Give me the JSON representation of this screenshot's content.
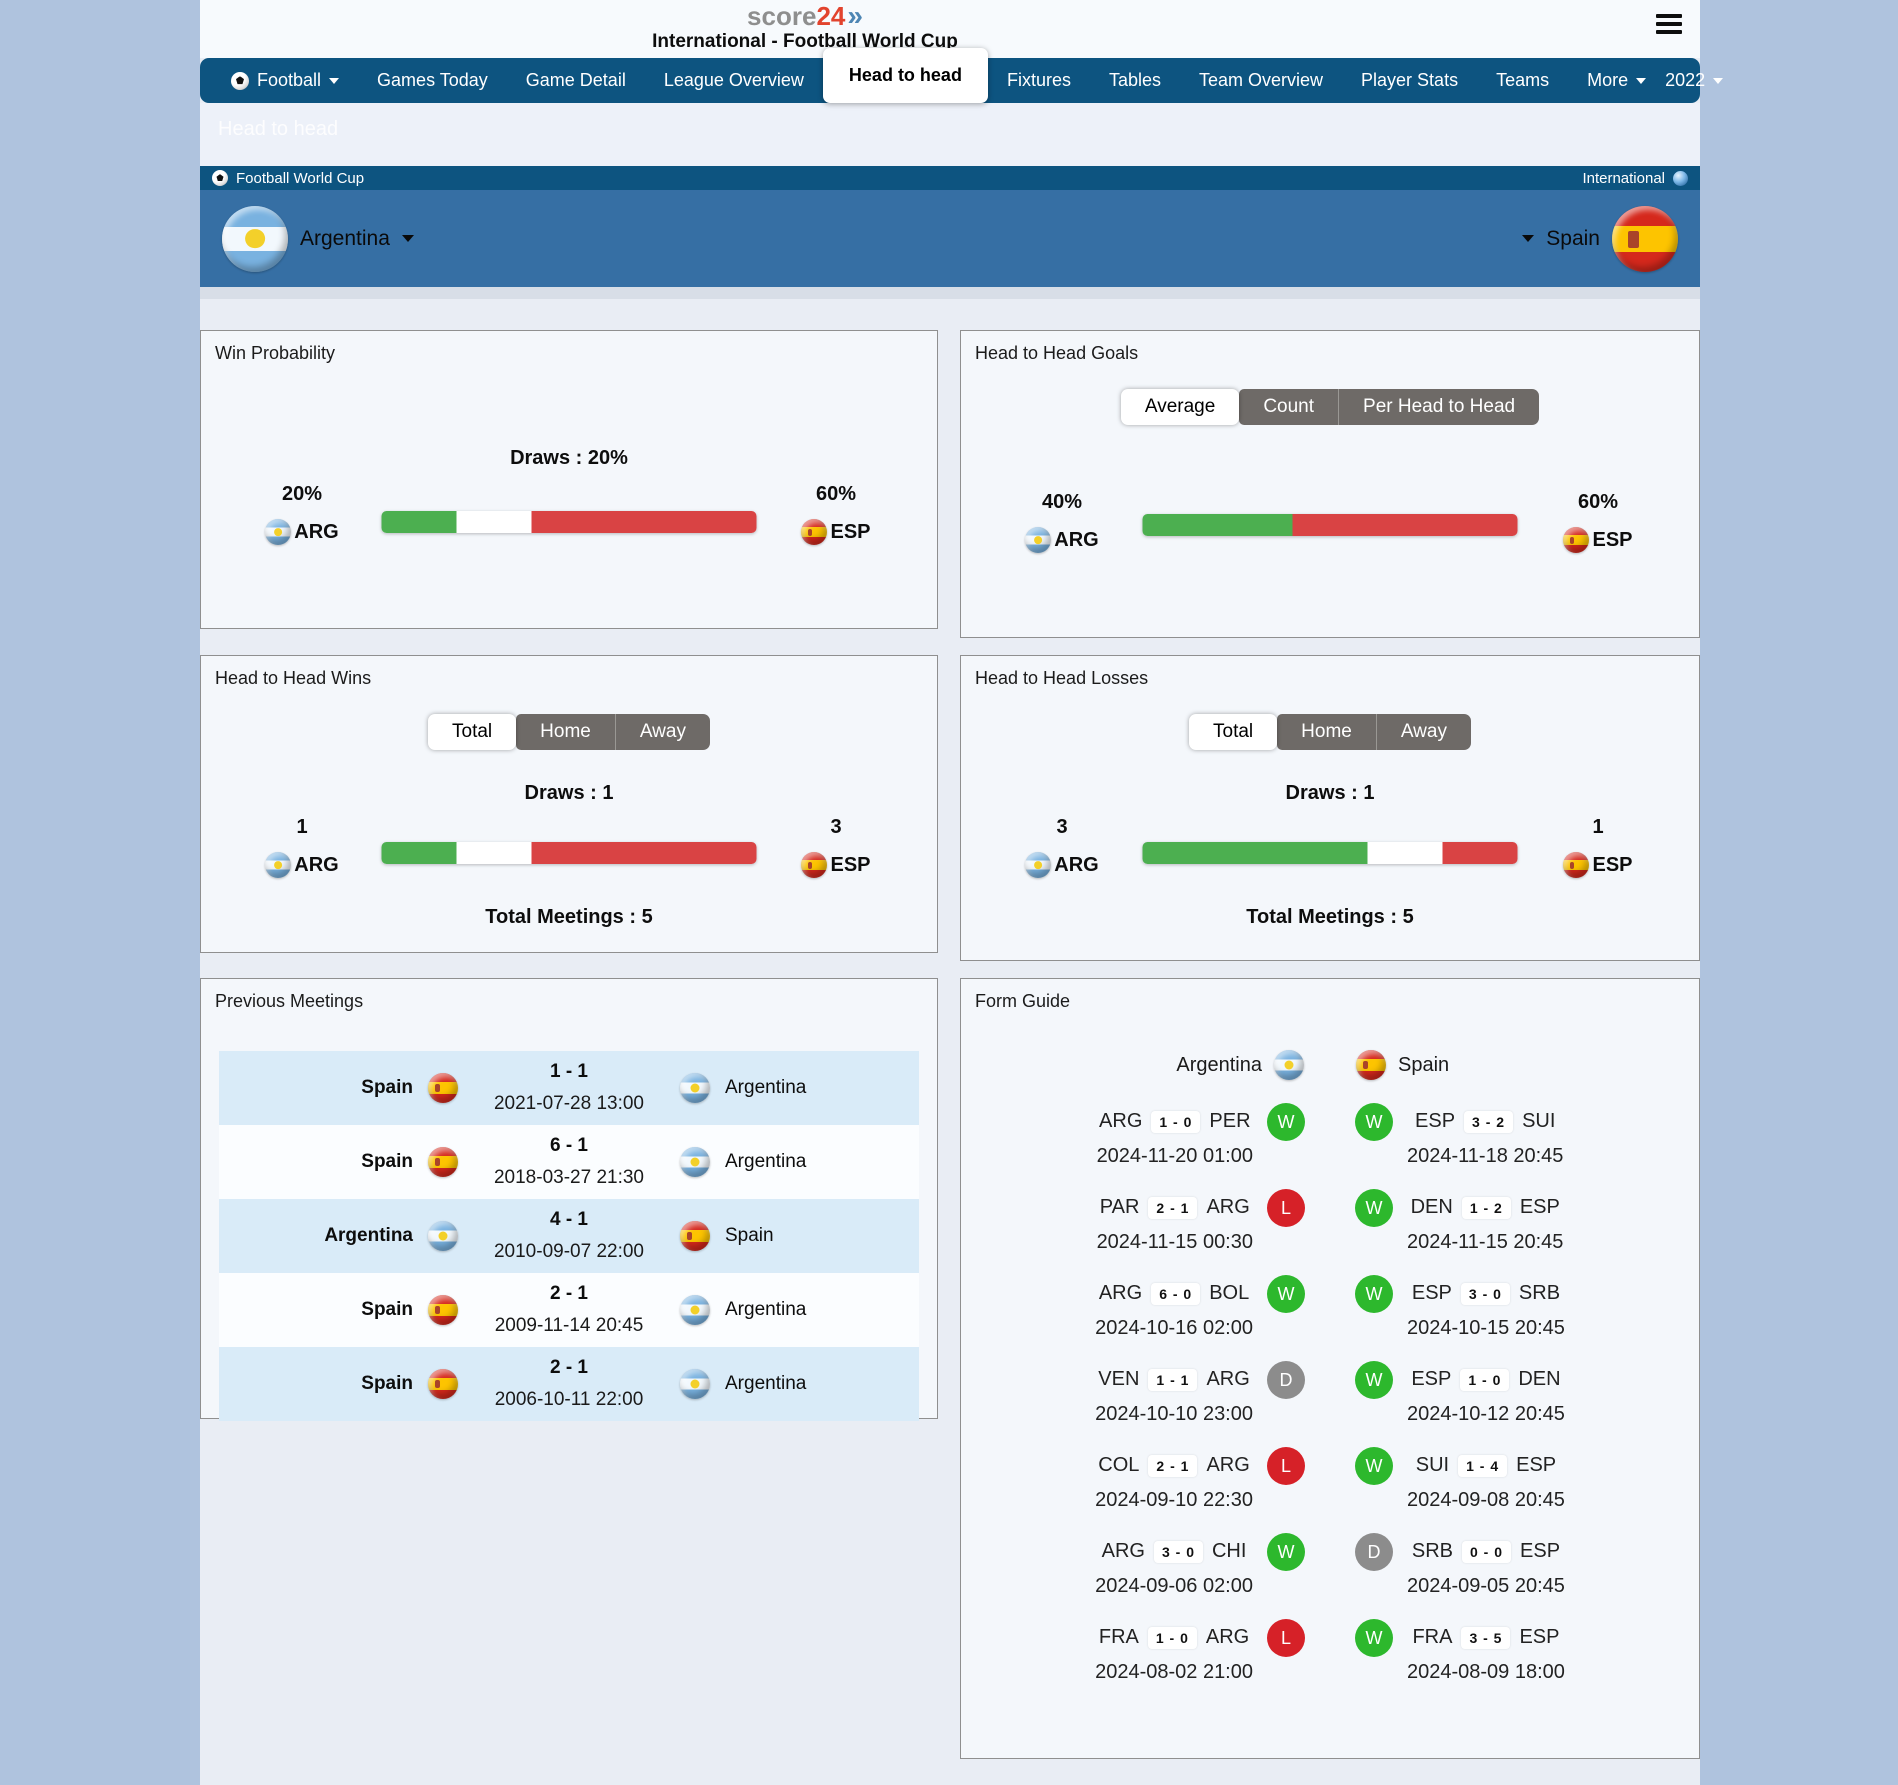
{
  "header": {
    "logo_part1": "score",
    "logo_part2": "24",
    "title": "International - Football World Cup"
  },
  "nav": {
    "items": [
      {
        "label": "Football",
        "icon": "soccer-ball-icon",
        "caret": true,
        "active": false
      },
      {
        "label": "Games Today"
      },
      {
        "label": "Game Detail"
      },
      {
        "label": "League Overview"
      },
      {
        "label": "Head to head",
        "active": true
      },
      {
        "label": "Fixtures"
      },
      {
        "label": "Tables"
      },
      {
        "label": "Team Overview"
      },
      {
        "label": "Player Stats"
      },
      {
        "label": "Teams"
      },
      {
        "label": "More",
        "caret": true
      }
    ],
    "season": "2022"
  },
  "subheader": {
    "ghost_title": "Head to head"
  },
  "league_bar": {
    "title": "Football World Cup",
    "region": "International"
  },
  "team_banner": {
    "home": "Argentina",
    "away": "Spain"
  },
  "panels": {
    "win_probability": {
      "title": "Win Probability",
      "draws_label": "Draws : 20%",
      "home": {
        "value": "20%",
        "code": "ARG",
        "flag": "arg"
      },
      "away": {
        "value": "60%",
        "code": "ESP",
        "flag": "esp"
      },
      "bar": {
        "green_pct": 20,
        "white_pct": 20,
        "red_pct": 60
      }
    },
    "h2h_goals": {
      "title": "Head to Head Goals",
      "tabs": [
        "Average",
        "Count",
        "Per Head to Head"
      ],
      "active_tab": "Average",
      "home": {
        "value": "40%",
        "code": "ARG",
        "flag": "arg"
      },
      "away": {
        "value": "60%",
        "code": "ESP",
        "flag": "esp"
      },
      "bar": {
        "green_pct": 40,
        "white_pct": 0,
        "red_pct": 60
      }
    },
    "h2h_wins": {
      "title": "Head to Head Wins",
      "tabs": [
        "Total",
        "Home",
        "Away"
      ],
      "active_tab": "Total",
      "draws_label": "Draws : 1",
      "home": {
        "value": "1",
        "code": "ARG",
        "flag": "arg"
      },
      "away": {
        "value": "3",
        "code": "ESP",
        "flag": "esp"
      },
      "bar": {
        "green_pct": 20,
        "white_pct": 20,
        "red_pct": 60
      },
      "total_label": "Total Meetings : 5"
    },
    "h2h_losses": {
      "title": "Head to Head Losses",
      "tabs": [
        "Total",
        "Home",
        "Away"
      ],
      "active_tab": "Total",
      "draws_label": "Draws : 1",
      "home": {
        "value": "3",
        "code": "ARG",
        "flag": "arg"
      },
      "away": {
        "value": "1",
        "code": "ESP",
        "flag": "esp"
      },
      "bar": {
        "green_pct": 60,
        "white_pct": 20,
        "red_pct": 20
      },
      "total_label": "Total Meetings : 5"
    },
    "previous_meetings": {
      "title": "Previous Meetings",
      "rows": [
        {
          "home": "Spain",
          "home_flag": "esp",
          "score": "1 - 1",
          "date": "2021-07-28 13:00",
          "away": "Argentina",
          "away_flag": "arg"
        },
        {
          "home": "Spain",
          "home_flag": "esp",
          "score": "6 - 1",
          "date": "2018-03-27 21:30",
          "away": "Argentina",
          "away_flag": "arg"
        },
        {
          "home": "Argentina",
          "home_flag": "arg",
          "score": "4 - 1",
          "date": "2010-09-07 22:00",
          "away": "Spain",
          "away_flag": "esp"
        },
        {
          "home": "Spain",
          "home_flag": "esp",
          "score": "2 - 1",
          "date": "2009-11-14 20:45",
          "away": "Argentina",
          "away_flag": "arg"
        },
        {
          "home": "Spain",
          "home_flag": "esp",
          "score": "2 - 1",
          "date": "2006-10-11 22:00",
          "away": "Argentina",
          "away_flag": "arg"
        }
      ]
    },
    "form_guide": {
      "title": "Form Guide",
      "home_team": "Argentina",
      "away_team": "Spain",
      "rows": [
        {
          "home": {
            "t1": "ARG",
            "score": "1 - 0",
            "t2": "PER",
            "result": "W",
            "date": "2024-11-20 01:00"
          },
          "away": {
            "t1": "ESP",
            "score": "3 - 2",
            "t2": "SUI",
            "result": "W",
            "date": "2024-11-18 20:45"
          }
        },
        {
          "home": {
            "t1": "PAR",
            "score": "2 - 1",
            "t2": "ARG",
            "result": "L",
            "date": "2024-11-15 00:30"
          },
          "away": {
            "t1": "DEN",
            "score": "1 - 2",
            "t2": "ESP",
            "result": "W",
            "date": "2024-11-15 20:45"
          }
        },
        {
          "home": {
            "t1": "ARG",
            "score": "6 - 0",
            "t2": "BOL",
            "result": "W",
            "date": "2024-10-16 02:00"
          },
          "away": {
            "t1": "ESP",
            "score": "3 - 0",
            "t2": "SRB",
            "result": "W",
            "date": "2024-10-15 20:45"
          }
        },
        {
          "home": {
            "t1": "VEN",
            "score": "1 - 1",
            "t2": "ARG",
            "result": "D",
            "date": "2024-10-10 23:00"
          },
          "away": {
            "t1": "ESP",
            "score": "1 - 0",
            "t2": "DEN",
            "result": "W",
            "date": "2024-10-12 20:45"
          }
        },
        {
          "home": {
            "t1": "COL",
            "score": "2 - 1",
            "t2": "ARG",
            "result": "L",
            "date": "2024-09-10 22:30"
          },
          "away": {
            "t1": "SUI",
            "score": "1 - 4",
            "t2": "ESP",
            "result": "W",
            "date": "2024-09-08 20:45"
          }
        },
        {
          "home": {
            "t1": "ARG",
            "score": "3 - 0",
            "t2": "CHI",
            "result": "W",
            "date": "2024-09-06 02:00"
          },
          "away": {
            "t1": "SRB",
            "score": "0 - 0",
            "t2": "ESP",
            "result": "D",
            "date": "2024-09-05 20:45"
          }
        },
        {
          "home": {
            "t1": "FRA",
            "score": "1 - 0",
            "t2": "ARG",
            "result": "L",
            "date": "2024-08-02 21:00"
          },
          "away": {
            "t1": "FRA",
            "score": "3 - 5",
            "t2": "ESP",
            "result": "W",
            "date": "2024-08-09 18:00"
          }
        }
      ]
    }
  },
  "colors": {
    "nav_blue": "#0d5480",
    "banner_blue": "#366fa4",
    "bar_green": "#4caf50",
    "bar_red": "#d94344",
    "win_green": "#2db82d",
    "loss_red": "#d62128",
    "draw_gray": "#8c8c8c",
    "logo_red": "#e2432d"
  },
  "icons": [
    "soccer-ball-icon",
    "globe-icon",
    "hamburger-menu-icon",
    "chevron-down-icon",
    "argentina-flag-icon",
    "spain-flag-icon"
  ]
}
